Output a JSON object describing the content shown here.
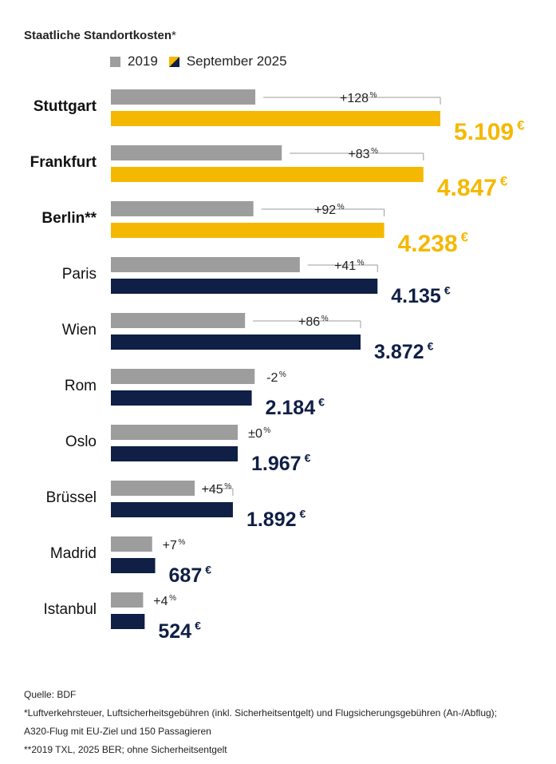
{
  "title": "Staatliche Standortkosten",
  "title_mark": "*",
  "legend": [
    {
      "label": "2019",
      "color": "#9d9d9d"
    },
    {
      "label": "September 2025",
      "color": "#0f1f45"
    }
  ],
  "colors": {
    "grey": "#9d9d9d",
    "yellow": "#f5b800",
    "navy": "#0f1f45"
  },
  "chart_data": {
    "type": "bar",
    "orientation": "horizontal",
    "title": "Staatliche Standortkosten*",
    "categories": [
      "Stuttgart",
      "Frankfurt",
      "Berlin**",
      "Paris",
      "Wien",
      "Rom",
      "Oslo",
      "Brüssel",
      "Madrid",
      "Istanbul"
    ],
    "bold_categories": [
      "Stuttgart",
      "Frankfurt",
      "Berlin**"
    ],
    "series": [
      {
        "name": "2019",
        "values": [
          2240,
          2650,
          2210,
          2930,
          2080,
          2230,
          1967,
          1300,
          640,
          500
        ]
      },
      {
        "name": "September 2025",
        "values": [
          5109,
          4847,
          4238,
          4135,
          3872,
          2184,
          1967,
          1892,
          687,
          524
        ]
      }
    ],
    "value_labels": [
      "5.109",
      "4.847",
      "4.238",
      "4.135",
      "3.872",
      "2.184",
      "1.967",
      "1.892",
      "687",
      "524"
    ],
    "currency": "€",
    "change_labels": [
      "+128",
      "+83",
      "+92",
      "+41",
      "+86",
      "-2",
      "±0",
      "+45",
      "+7",
      "+4"
    ],
    "change_unit": "%",
    "highlight_color": "#f5b800",
    "xlim": [
      0,
      5109
    ],
    "grid": false,
    "legend_position": "top-left"
  },
  "source": {
    "line1": "Quelle: BDF",
    "line2": "*Luftverkehrsteuer, Luftsicherheitsgebühren (inkl. Sicherheitsentgelt) und Flugsicherungsgebühren (An-/Abflug);",
    "line3": "A320-Flug mit EU-Ziel und 150 Passagieren",
    "line4": "**2019 TXL, 2025 BER; ohne Sicherheitsentgelt"
  }
}
